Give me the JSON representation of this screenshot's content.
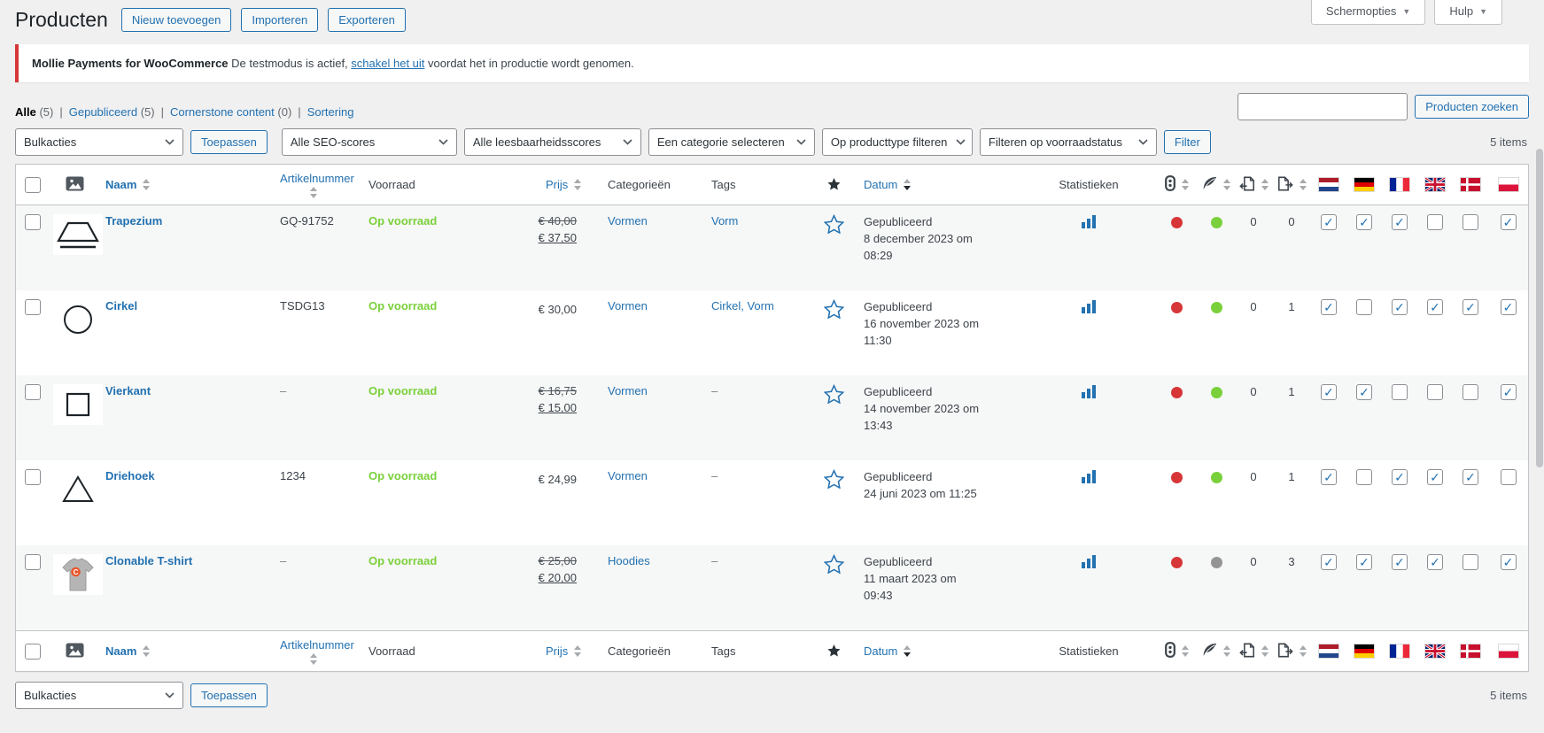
{
  "colors": {
    "accent": "#2271b1",
    "red": "#d63638",
    "green": "#7ad03a",
    "gray": "#949494",
    "instock_green": "#7ad03a",
    "notice_red": "#d63638"
  },
  "top_tabs": {
    "screen_options": "Schermopties",
    "help": "Hulp"
  },
  "page": {
    "title": "Producten",
    "actions": [
      "Nieuw toevoegen",
      "Importeren",
      "Exporteren"
    ]
  },
  "notice": {
    "bold": "Mollie Payments for WooCommerce",
    "before_link": "De testmodus is actief,",
    "link": "schakel het uit",
    "after_link": "voordat het in productie wordt genomen."
  },
  "views": {
    "all": "Alle",
    "all_count": "(5)",
    "published": "Gepubliceerd",
    "published_count": "(5)",
    "cornerstone": "Cornerstone content",
    "cornerstone_count": "(0)",
    "sorting": "Sortering"
  },
  "search": {
    "value": "",
    "submit": "Producten zoeken"
  },
  "toolbar": {
    "bulk_actions": "Bulkacties",
    "apply": "Toepassen",
    "seo_filter": "Alle SEO-scores",
    "readability_filter": "Alle leesbaarheidsscores",
    "category_filter": "Een categorie selecteren",
    "type_filter": "Op producttype filteren",
    "stock_filter": "Filteren op voorraadstatus",
    "filter": "Filter",
    "item_count": "5 items"
  },
  "table": {
    "columns": {
      "name": "Naam",
      "sku": "Artikelnummer",
      "stock": "Voorraad",
      "price": "Prijs",
      "categories": "Categorieën",
      "tags": "Tags",
      "date": "Datum",
      "stats": "Statistieken"
    },
    "icon_columns": [
      "seo-score",
      "readability-score",
      "links",
      "linked"
    ],
    "flags": [
      "nl",
      "de",
      "fr",
      "gb",
      "dk",
      "pl"
    ],
    "rows": [
      {
        "name": "Trapezium",
        "image": "trapezium-drawing",
        "sku": "GQ-91752",
        "stock": "Op voorraad",
        "price_old": "€ 40,00",
        "price": "€ 37,50",
        "categories": "Vormen",
        "tags": "Vorm",
        "status": "Gepubliceerd",
        "date": "8 december 2023 om 08:29",
        "seo": "red",
        "readability": "green",
        "links": "0",
        "linked": "0",
        "langs": [
          true,
          true,
          true,
          false,
          false,
          true
        ]
      },
      {
        "name": "Cirkel",
        "image": "circle-drawing",
        "sku": "TSDG13",
        "stock": "Op voorraad",
        "price_old": "",
        "price": "€ 30,00",
        "categories": "Vormen",
        "tags": "Cirkel, Vorm",
        "status": "Gepubliceerd",
        "date": "16 november 2023 om 11:30",
        "seo": "red",
        "readability": "green",
        "links": "0",
        "linked": "1",
        "langs": [
          true,
          false,
          true,
          true,
          true,
          true
        ]
      },
      {
        "name": "Vierkant",
        "image": "square-drawing",
        "sku": "–",
        "stock": "Op voorraad",
        "price_old": "€ 16,75",
        "price": "€ 15,00",
        "categories": "Vormen",
        "tags": "–",
        "status": "Gepubliceerd",
        "date": "14 november 2023 om 13:43",
        "seo": "red",
        "readability": "green",
        "links": "0",
        "linked": "1",
        "langs": [
          true,
          true,
          false,
          false,
          false,
          true
        ]
      },
      {
        "name": "Driehoek",
        "image": "triangle-drawing",
        "sku": "1234",
        "stock": "Op voorraad",
        "price_old": "",
        "price": "€ 24,99",
        "categories": "Vormen",
        "tags": "–",
        "status": "Gepubliceerd",
        "date": "24 juni 2023 om 11:25",
        "seo": "red",
        "readability": "green",
        "links": "0",
        "linked": "1",
        "langs": [
          true,
          false,
          true,
          true,
          true,
          false
        ]
      },
      {
        "name": "Clonable T-shirt",
        "image": "tshirt-photo",
        "sku": "–",
        "stock": "Op voorraad",
        "price_old": "€ 25,00",
        "price": "€ 20,00",
        "categories": "Hoodies",
        "tags": "–",
        "status": "Gepubliceerd",
        "date": "11 maart 2023 om 09:43",
        "seo": "red",
        "readability": "gray",
        "links": "0",
        "linked": "3",
        "langs": [
          true,
          true,
          true,
          true,
          false,
          true
        ]
      }
    ]
  },
  "footer": {
    "bulk_actions": "Bulkacties",
    "apply": "Toepassen",
    "item_count": "5 items"
  }
}
